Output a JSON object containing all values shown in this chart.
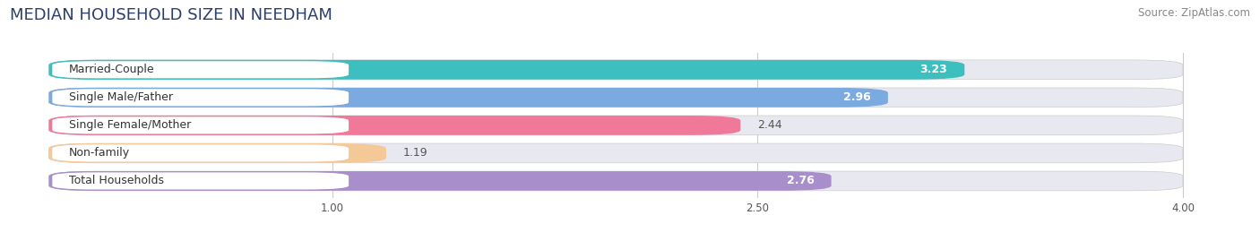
{
  "title": "MEDIAN HOUSEHOLD SIZE IN NEEDHAM",
  "source": "Source: ZipAtlas.com",
  "categories": [
    "Married-Couple",
    "Single Male/Father",
    "Single Female/Mother",
    "Non-family",
    "Total Households"
  ],
  "values": [
    3.23,
    2.96,
    2.44,
    1.19,
    2.76
  ],
  "bar_colors": [
    "#3dbfbf",
    "#7aaae0",
    "#f07898",
    "#f5c898",
    "#a98ecc"
  ],
  "label_bg_colors": [
    "#3dbfbf",
    "#7aaae0",
    "#f07898",
    "#f5c898",
    "#a98ecc"
  ],
  "background_color": "#ffffff",
  "bar_background": "#e8e8f0",
  "xmin": 0.0,
  "xmax": 4.0,
  "xlim_left": -0.15,
  "xlim_right": 4.25,
  "xticks": [
    1.0,
    2.5,
    4.0
  ],
  "title_fontsize": 13,
  "source_fontsize": 8.5,
  "label_fontsize": 9,
  "value_fontsize": 9,
  "value_inside_threshold": 2.6
}
